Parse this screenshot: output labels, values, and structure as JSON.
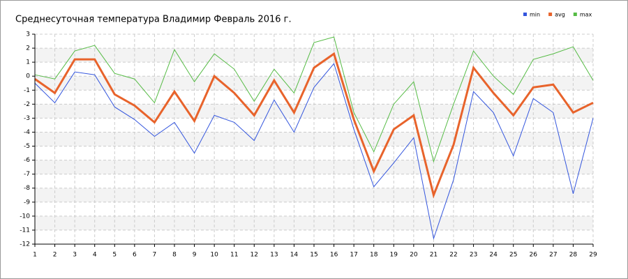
{
  "chart_data": {
    "type": "line",
    "title": "Среднесуточная температура Владимир  Февраль 2016 г.",
    "x": [
      1,
      2,
      3,
      4,
      5,
      6,
      7,
      8,
      9,
      10,
      11,
      12,
      13,
      14,
      15,
      16,
      17,
      18,
      19,
      20,
      21,
      22,
      23,
      24,
      25,
      26,
      27,
      28,
      29
    ],
    "series": [
      {
        "name": "min",
        "color": "#3355dd",
        "values": [
          -0.5,
          -1.9,
          0.3,
          0.1,
          -2.2,
          -3.1,
          -4.3,
          -3.3,
          -5.5,
          -2.8,
          -3.3,
          -4.6,
          -1.7,
          -4,
          -0.8,
          0.9,
          -3.8,
          -7.9,
          -6.2,
          -4.4,
          -11.6,
          -7.4,
          -1.1,
          -2.6,
          -5.7,
          -1.6,
          -2.6,
          -8.4,
          -3
        ]
      },
      {
        "name": "avg",
        "color": "#e8632b",
        "values": [
          -0.2,
          -1.2,
          1.2,
          1.2,
          -1.3,
          -2.1,
          -3.3,
          -1.1,
          -3.2,
          0,
          -1.2,
          -2.8,
          -0.3,
          -2.6,
          0.6,
          1.6,
          -3.1,
          -6.8,
          -3.8,
          -2.8,
          -8.5,
          -4.9,
          0.6,
          -1.2,
          -2.8,
          -0.8,
          -0.6,
          -2.6,
          -1.9
        ]
      },
      {
        "name": "max",
        "color": "#55bb44",
        "values": [
          0.1,
          -0.2,
          1.8,
          2.2,
          0.2,
          -0.2,
          -1.9,
          1.9,
          -0.4,
          1.6,
          0.5,
          -1.8,
          0.5,
          -1.2,
          2.4,
          2.8,
          -2.6,
          -5.4,
          -2,
          -0.4,
          -6.1,
          -2,
          1.8,
          0,
          -1.3,
          1.2,
          1.6,
          2.1,
          -0.3
        ]
      }
    ],
    "xlim": [
      1,
      29
    ],
    "xticks": [
      1,
      2,
      3,
      4,
      5,
      6,
      7,
      8,
      9,
      10,
      11,
      12,
      13,
      14,
      15,
      16,
      17,
      18,
      19,
      20,
      21,
      22,
      23,
      24,
      25,
      26,
      27,
      28,
      29
    ],
    "ylim": [
      -12,
      3
    ],
    "yticks": [
      -12,
      -11,
      -10,
      -9,
      -8,
      -7,
      -6,
      -5,
      -4,
      -3,
      -2,
      -1,
      0,
      1,
      2,
      3
    ],
    "grid": true
  }
}
